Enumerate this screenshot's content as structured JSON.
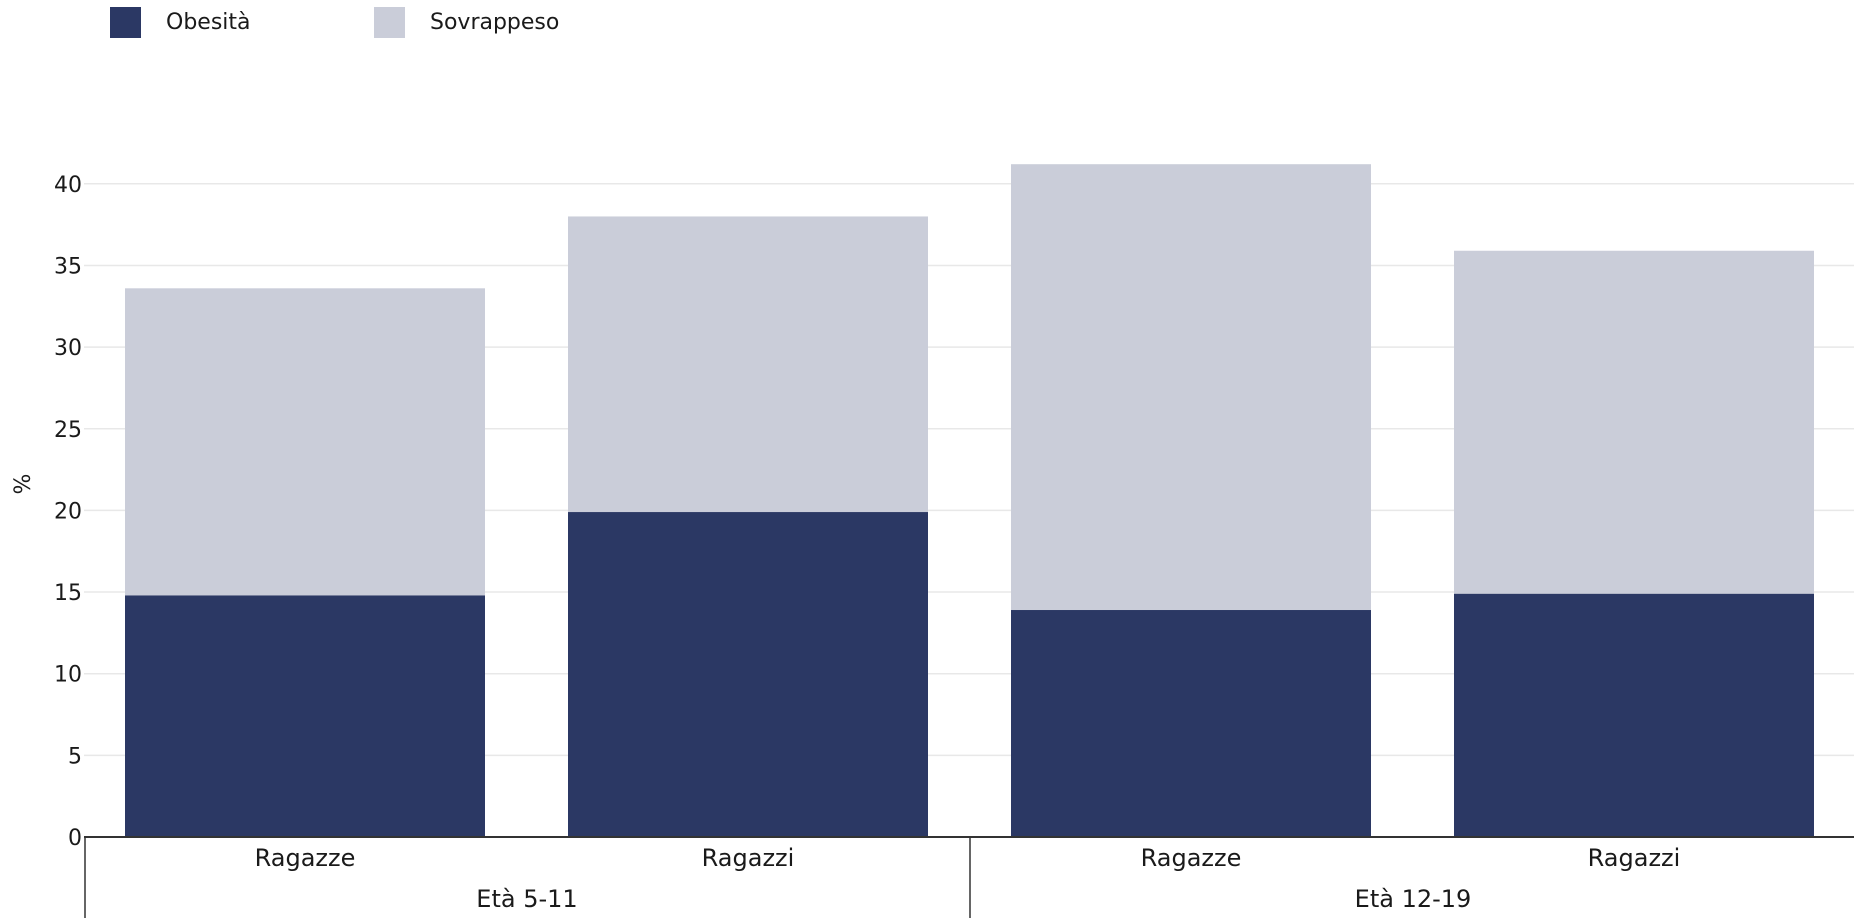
{
  "chart_data": {
    "type": "bar",
    "stacked": true,
    "categories": [
      "Ragazze",
      "Ragazzi",
      "Ragazze",
      "Ragazzi"
    ],
    "groups": [
      {
        "label": "Età 5-11",
        "categories": [
          "Ragazze",
          "Ragazzi"
        ]
      },
      {
        "label": "Età 12-19",
        "categories": [
          "Ragazze",
          "Ragazzi"
        ]
      }
    ],
    "series": [
      {
        "name": "Obesità",
        "color": "#2b3864",
        "values": [
          14.8,
          19.9,
          13.9,
          14.9
        ]
      },
      {
        "name": "Sovrappeso",
        "color": "#cacdd9",
        "values": [
          18.8,
          18.1,
          27.3,
          21.0
        ]
      }
    ],
    "ylabel": "%",
    "ylim": [
      0,
      40
    ],
    "yticks": [
      0,
      5,
      10,
      15,
      20,
      25,
      30,
      35,
      40
    ],
    "grid": true,
    "legend": "top-left"
  }
}
